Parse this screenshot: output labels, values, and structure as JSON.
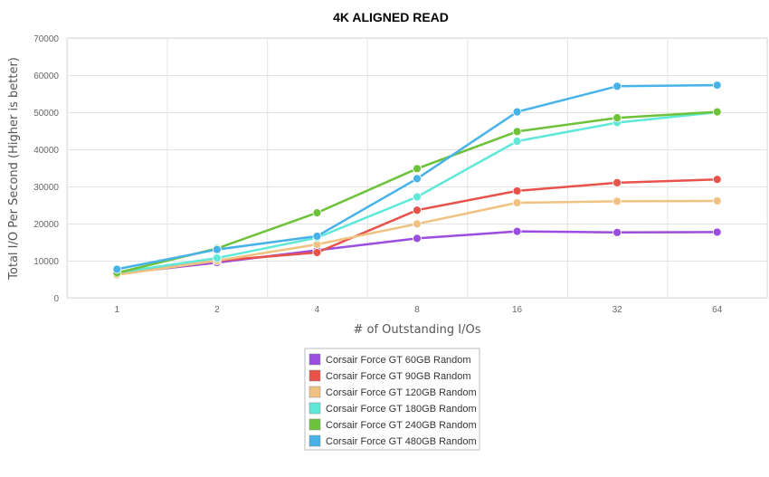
{
  "chart_data": {
    "type": "line",
    "title": "4K ALIGNED READ",
    "xlabel": "# of Outstanding I/Os",
    "ylabel": "Total I/O Per Second (Higher is better)",
    "categories": [
      "1",
      "2",
      "4",
      "8",
      "16",
      "32",
      "64"
    ],
    "ylim": [
      0,
      70000
    ],
    "yticks": [
      0,
      10000,
      20000,
      30000,
      40000,
      50000,
      60000,
      70000
    ],
    "grid": true,
    "legend_position": "bottom-center",
    "series": [
      {
        "name": "Corsair Force GT 60GB Random",
        "color": "#9b4de0",
        "values": [
          6500,
          9500,
          12800,
          16000,
          17900,
          17600,
          17700
        ]
      },
      {
        "name": "Corsair Force GT 90GB Random",
        "color": "#e8524a",
        "values": [
          6300,
          10000,
          12200,
          23600,
          28800,
          31000,
          31900
        ]
      },
      {
        "name": "Corsair Force GT 120GB Random",
        "color": "#f0c282",
        "values": [
          6200,
          10000,
          14400,
          19900,
          25600,
          26000,
          26100
        ]
      },
      {
        "name": "Corsair Force GT 180GB Random",
        "color": "#5ee8d8",
        "values": [
          6800,
          10700,
          16200,
          27200,
          42200,
          47200,
          50000
        ]
      },
      {
        "name": "Corsair Force GT 240GB Random",
        "color": "#6ec23a",
        "values": [
          6700,
          13300,
          22900,
          34800,
          44800,
          48500,
          50100
        ]
      },
      {
        "name": "Corsair Force GT 480GB Random",
        "color": "#47b2e8",
        "values": [
          7700,
          13000,
          16600,
          32100,
          50100,
          57000,
          57300
        ]
      }
    ]
  }
}
